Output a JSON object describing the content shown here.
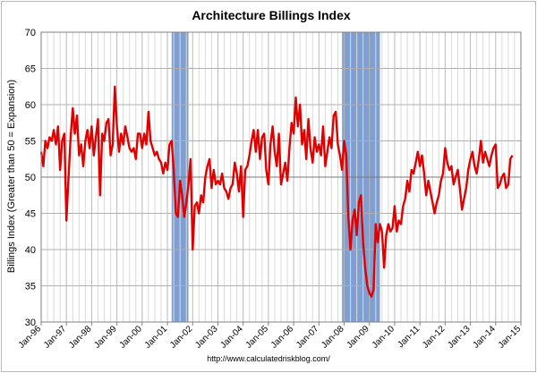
{
  "chart_data": {
    "type": "line",
    "title": "Architecture Billings Index",
    "ylabel": "Billings Index (Greater than 50 = Expansion)",
    "xlabel": "",
    "ylim": [
      30,
      70
    ],
    "yticks": [
      30,
      35,
      40,
      45,
      50,
      55,
      60,
      65,
      70
    ],
    "xticks": [
      "Jan-96",
      "Jan-97",
      "Jan-98",
      "Jan-99",
      "Jan-00",
      "Jan-01",
      "Jan-02",
      "Jan-03",
      "Jan-04",
      "Jan-05",
      "Jan-06",
      "Jan-07",
      "Jan-08",
      "Jan-09",
      "Jan-10",
      "Jan-11",
      "Jan-12",
      "Jan-13",
      "Jan-14",
      "Jan-15"
    ],
    "x_start": "1996-01",
    "x_end": "2015-01",
    "grid": {
      "horizontal": true,
      "vertical": true
    },
    "recession_shading": [
      {
        "start": "2001-03",
        "end": "2001-11"
      },
      {
        "start": "2007-12",
        "end": "2009-06"
      }
    ],
    "series": [
      {
        "color": "#e00000",
        "points": [
          [
            "1996-01",
            53.5
          ],
          [
            "1996-02",
            51.5
          ],
          [
            "1996-03",
            55.0
          ],
          [
            "1996-04",
            54.0
          ],
          [
            "1996-05",
            55.5
          ],
          [
            "1996-06",
            55.0
          ],
          [
            "1996-07",
            56.5
          ],
          [
            "1996-08",
            54.5
          ],
          [
            "1996-09",
            57.0
          ],
          [
            "1996-10",
            51.0
          ],
          [
            "1996-11",
            55.0
          ],
          [
            "1996-12",
            56.0
          ],
          [
            "1997-01",
            44.0
          ],
          [
            "1997-02",
            50.0
          ],
          [
            "1997-03",
            55.5
          ],
          [
            "1997-04",
            59.5
          ],
          [
            "1997-05",
            56.0
          ],
          [
            "1997-06",
            58.5
          ],
          [
            "1997-07",
            53.0
          ],
          [
            "1997-08",
            54.5
          ],
          [
            "1997-09",
            51.5
          ],
          [
            "1997-10",
            55.0
          ],
          [
            "1997-11",
            56.5
          ],
          [
            "1997-12",
            54.0
          ],
          [
            "1998-01",
            57.0
          ],
          [
            "1998-02",
            53.0
          ],
          [
            "1998-03",
            55.5
          ],
          [
            "1998-04",
            58.0
          ],
          [
            "1998-05",
            47.5
          ],
          [
            "1998-06",
            56.0
          ],
          [
            "1998-07",
            55.0
          ],
          [
            "1998-08",
            57.5
          ],
          [
            "1998-09",
            58.0
          ],
          [
            "1998-10",
            53.0
          ],
          [
            "1998-11",
            54.5
          ],
          [
            "1998-12",
            62.5
          ],
          [
            "1999-01",
            57.0
          ],
          [
            "1999-02",
            53.5
          ],
          [
            "1999-03",
            56.0
          ],
          [
            "1999-04",
            54.5
          ],
          [
            "1999-05",
            57.0
          ],
          [
            "1999-06",
            55.5
          ],
          [
            "1999-07",
            54.0
          ],
          [
            "1999-08",
            53.5
          ],
          [
            "1999-09",
            54.0
          ],
          [
            "1999-10",
            52.5
          ],
          [
            "1999-11",
            56.0
          ],
          [
            "1999-12",
            56.0
          ],
          [
            "2000-01",
            54.0
          ],
          [
            "2000-02",
            56.0
          ],
          [
            "2000-03",
            54.5
          ],
          [
            "2000-04",
            59.0
          ],
          [
            "2000-05",
            55.0
          ],
          [
            "2000-06",
            54.0
          ],
          [
            "2000-07",
            53.0
          ],
          [
            "2000-08",
            53.5
          ],
          [
            "2000-09",
            52.5
          ],
          [
            "2000-10",
            52.0
          ],
          [
            "2000-11",
            50.5
          ],
          [
            "2000-12",
            52.0
          ],
          [
            "2001-01",
            51.0
          ],
          [
            "2001-02",
            54.5
          ],
          [
            "2001-03",
            55.0
          ],
          [
            "2001-04",
            51.0
          ],
          [
            "2001-05",
            45.0
          ],
          [
            "2001-06",
            44.5
          ],
          [
            "2001-07",
            49.5
          ],
          [
            "2001-08",
            47.5
          ],
          [
            "2001-09",
            44.5
          ],
          [
            "2001-10",
            46.5
          ],
          [
            "2001-11",
            49.0
          ],
          [
            "2001-12",
            52.5
          ],
          [
            "2002-01",
            40.0
          ],
          [
            "2002-02",
            46.0
          ],
          [
            "2002-03",
            46.5
          ],
          [
            "2002-04",
            45.0
          ],
          [
            "2002-05",
            47.5
          ],
          [
            "2002-06",
            46.5
          ],
          [
            "2002-07",
            50.0
          ],
          [
            "2002-08",
            51.5
          ],
          [
            "2002-09",
            52.5
          ],
          [
            "2002-10",
            48.5
          ],
          [
            "2002-11",
            51.0
          ],
          [
            "2002-12",
            49.0
          ],
          [
            "2003-01",
            49.5
          ],
          [
            "2003-02",
            49.0
          ],
          [
            "2003-03",
            50.5
          ],
          [
            "2003-04",
            48.5
          ],
          [
            "2003-05",
            48.0
          ],
          [
            "2003-06",
            47.0
          ],
          [
            "2003-07",
            48.5
          ],
          [
            "2003-08",
            49.0
          ],
          [
            "2003-09",
            52.0
          ],
          [
            "2003-10",
            50.5
          ],
          [
            "2003-11",
            48.0
          ],
          [
            "2003-12",
            51.5
          ],
          [
            "2004-01",
            44.5
          ],
          [
            "2004-02",
            51.0
          ],
          [
            "2004-03",
            51.5
          ],
          [
            "2004-04",
            53.0
          ],
          [
            "2004-05",
            55.0
          ],
          [
            "2004-06",
            56.5
          ],
          [
            "2004-07",
            53.5
          ],
          [
            "2004-08",
            56.5
          ],
          [
            "2004-09",
            52.5
          ],
          [
            "2004-10",
            55.5
          ],
          [
            "2004-11",
            56.0
          ],
          [
            "2004-12",
            51.0
          ],
          [
            "2005-01",
            49.0
          ],
          [
            "2005-02",
            54.5
          ],
          [
            "2005-03",
            57.0
          ],
          [
            "2005-04",
            53.5
          ],
          [
            "2005-05",
            51.5
          ],
          [
            "2005-06",
            56.0
          ],
          [
            "2005-07",
            49.0
          ],
          [
            "2005-08",
            50.5
          ],
          [
            "2005-09",
            52.0
          ],
          [
            "2005-10",
            49.5
          ],
          [
            "2005-11",
            54.0
          ],
          [
            "2005-12",
            57.5
          ],
          [
            "2006-01",
            56.0
          ],
          [
            "2006-02",
            61.0
          ],
          [
            "2006-03",
            57.0
          ],
          [
            "2006-04",
            60.0
          ],
          [
            "2006-05",
            54.5
          ],
          [
            "2006-06",
            56.5
          ],
          [
            "2006-07",
            52.5
          ],
          [
            "2006-08",
            58.0
          ],
          [
            "2006-09",
            54.0
          ],
          [
            "2006-10",
            52.0
          ],
          [
            "2006-11",
            55.5
          ],
          [
            "2006-12",
            53.5
          ],
          [
            "2007-01",
            54.5
          ],
          [
            "2007-02",
            53.0
          ],
          [
            "2007-03",
            57.0
          ],
          [
            "2007-04",
            51.5
          ],
          [
            "2007-05",
            53.5
          ],
          [
            "2007-06",
            55.5
          ],
          [
            "2007-07",
            54.0
          ],
          [
            "2007-08",
            58.5
          ],
          [
            "2007-09",
            59.0
          ],
          [
            "2007-10",
            54.5
          ],
          [
            "2007-11",
            53.0
          ],
          [
            "2007-12",
            51.0
          ],
          [
            "2008-01",
            55.0
          ],
          [
            "2008-02",
            53.0
          ],
          [
            "2008-03",
            44.5
          ],
          [
            "2008-04",
            40.0
          ],
          [
            "2008-05",
            44.0
          ],
          [
            "2008-06",
            45.5
          ],
          [
            "2008-07",
            42.0
          ],
          [
            "2008-08",
            46.5
          ],
          [
            "2008-09",
            47.5
          ],
          [
            "2008-10",
            41.0
          ],
          [
            "2008-11",
            37.5
          ],
          [
            "2008-12",
            35.0
          ],
          [
            "2009-01",
            34.0
          ],
          [
            "2009-02",
            33.5
          ],
          [
            "2009-03",
            34.5
          ],
          [
            "2009-04",
            43.5
          ],
          [
            "2009-05",
            41.0
          ],
          [
            "2009-06",
            43.5
          ],
          [
            "2009-07",
            42.5
          ],
          [
            "2009-08",
            37.5
          ],
          [
            "2009-09",
            42.0
          ],
          [
            "2009-10",
            43.5
          ],
          [
            "2009-11",
            42.5
          ],
          [
            "2009-12",
            43.0
          ],
          [
            "2010-01",
            46.0
          ],
          [
            "2010-02",
            42.5
          ],
          [
            "2010-03",
            44.0
          ],
          [
            "2010-04",
            43.5
          ],
          [
            "2010-05",
            46.0
          ],
          [
            "2010-06",
            47.0
          ],
          [
            "2010-07",
            49.5
          ],
          [
            "2010-08",
            48.0
          ],
          [
            "2010-09",
            51.0
          ],
          [
            "2010-10",
            50.5
          ],
          [
            "2010-11",
            52.0
          ],
          [
            "2010-12",
            53.5
          ],
          [
            "2011-01",
            51.5
          ],
          [
            "2011-02",
            53.0
          ],
          [
            "2011-03",
            50.5
          ],
          [
            "2011-04",
            47.5
          ],
          [
            "2011-05",
            49.5
          ],
          [
            "2011-06",
            48.0
          ],
          [
            "2011-07",
            46.5
          ],
          [
            "2011-08",
            45.0
          ],
          [
            "2011-09",
            46.5
          ],
          [
            "2011-10",
            47.5
          ],
          [
            "2011-11",
            49.5
          ],
          [
            "2011-12",
            50.5
          ],
          [
            "2012-01",
            54.0
          ],
          [
            "2012-02",
            52.0
          ],
          [
            "2012-03",
            51.0
          ],
          [
            "2012-04",
            51.5
          ],
          [
            "2012-05",
            49.0
          ],
          [
            "2012-06",
            50.0
          ],
          [
            "2012-07",
            51.0
          ],
          [
            "2012-08",
            48.5
          ],
          [
            "2012-09",
            45.5
          ],
          [
            "2012-10",
            47.0
          ],
          [
            "2012-11",
            48.5
          ],
          [
            "2012-12",
            51.0
          ],
          [
            "2013-01",
            52.5
          ],
          [
            "2013-02",
            53.5
          ],
          [
            "2013-03",
            51.5
          ],
          [
            "2013-04",
            50.5
          ],
          [
            "2013-05",
            52.5
          ],
          [
            "2013-06",
            55.0
          ],
          [
            "2013-07",
            52.0
          ],
          [
            "2013-08",
            53.5
          ],
          [
            "2013-09",
            52.5
          ],
          [
            "2013-10",
            51.5
          ],
          [
            "2013-11",
            53.0
          ],
          [
            "2013-12",
            54.0
          ],
          [
            "2014-01",
            54.5
          ],
          [
            "2014-02",
            48.5
          ],
          [
            "2014-03",
            49.0
          ],
          [
            "2014-04",
            50.0
          ],
          [
            "2014-05",
            50.5
          ],
          [
            "2014-06",
            48.5
          ],
          [
            "2014-07",
            49.0
          ],
          [
            "2014-08",
            52.5
          ],
          [
            "2014-09",
            53.0
          ]
        ]
      }
    ],
    "recession_color": "#7f9fd3",
    "source": "http://www.calculatedriskblog.com/"
  }
}
